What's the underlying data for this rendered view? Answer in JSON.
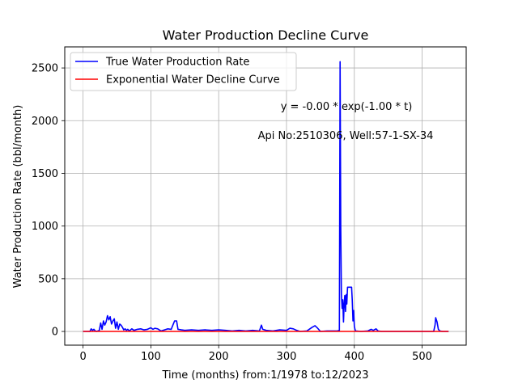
{
  "chart_data": {
    "type": "line",
    "title": "Water Production Decline Curve",
    "xlabel": "Time (months) from:1/1978 to:12/2023",
    "ylabel": "Water Production Rate (bbl/month)",
    "xlim": [
      -27,
      565
    ],
    "ylim": [
      -130,
      2700
    ],
    "xticks": [
      0,
      100,
      200,
      300,
      400,
      500
    ],
    "yticks": [
      0,
      500,
      1000,
      1500,
      2000,
      2500
    ],
    "xtick_labels": [
      "0",
      "100",
      "200",
      "300",
      "400",
      "500"
    ],
    "ytick_labels": [
      "0",
      "500",
      "1000",
      "1500",
      "2000",
      "2500"
    ],
    "grid": true,
    "legend_position": "top-left",
    "annotations": [
      "y = -0.00 * exp(-1.00 * t)",
      "Api No:2510306, Well:57-1-SX-34"
    ],
    "series": [
      {
        "name": "True Water Production Rate",
        "color": "#0000ff",
        "points": [
          [
            0,
            0
          ],
          [
            10,
            0
          ],
          [
            12,
            25
          ],
          [
            14,
            10
          ],
          [
            16,
            20
          ],
          [
            18,
            5
          ],
          [
            20,
            0
          ],
          [
            24,
            10
          ],
          [
            26,
            80
          ],
          [
            28,
            20
          ],
          [
            30,
            100
          ],
          [
            32,
            60
          ],
          [
            34,
            90
          ],
          [
            36,
            150
          ],
          [
            38,
            110
          ],
          [
            40,
            140
          ],
          [
            42,
            70
          ],
          [
            44,
            100
          ],
          [
            46,
            120
          ],
          [
            48,
            30
          ],
          [
            50,
            90
          ],
          [
            52,
            20
          ],
          [
            54,
            70
          ],
          [
            56,
            60
          ],
          [
            58,
            40
          ],
          [
            60,
            15
          ],
          [
            62,
            25
          ],
          [
            64,
            10
          ],
          [
            66,
            20
          ],
          [
            68,
            5
          ],
          [
            70,
            15
          ],
          [
            72,
            25
          ],
          [
            75,
            10
          ],
          [
            80,
            20
          ],
          [
            85,
            25
          ],
          [
            90,
            15
          ],
          [
            95,
            20
          ],
          [
            100,
            35
          ],
          [
            103,
            20
          ],
          [
            106,
            30
          ],
          [
            110,
            25
          ],
          [
            115,
            5
          ],
          [
            120,
            15
          ],
          [
            125,
            25
          ],
          [
            130,
            20
          ],
          [
            135,
            100
          ],
          [
            138,
            100
          ],
          [
            140,
            20
          ],
          [
            145,
            15
          ],
          [
            150,
            10
          ],
          [
            160,
            15
          ],
          [
            170,
            10
          ],
          [
            180,
            15
          ],
          [
            190,
            10
          ],
          [
            200,
            15
          ],
          [
            210,
            10
          ],
          [
            220,
            5
          ],
          [
            230,
            10
          ],
          [
            240,
            5
          ],
          [
            250,
            10
          ],
          [
            260,
            5
          ],
          [
            263,
            60
          ],
          [
            265,
            20
          ],
          [
            270,
            10
          ],
          [
            280,
            5
          ],
          [
            290,
            15
          ],
          [
            300,
            10
          ],
          [
            305,
            30
          ],
          [
            310,
            25
          ],
          [
            315,
            10
          ],
          [
            320,
            0
          ],
          [
            330,
            5
          ],
          [
            338,
            40
          ],
          [
            342,
            55
          ],
          [
            346,
            30
          ],
          [
            350,
            0
          ],
          [
            360,
            5
          ],
          [
            375,
            5
          ],
          [
            378,
            10
          ],
          [
            379,
            2560
          ],
          [
            380,
            1000
          ],
          [
            381,
            350
          ],
          [
            382,
            220
          ],
          [
            383,
            300
          ],
          [
            384,
            90
          ],
          [
            385,
            260
          ],
          [
            386,
            340
          ],
          [
            387,
            190
          ],
          [
            388,
            350
          ],
          [
            389,
            260
          ],
          [
            390,
            420
          ],
          [
            396,
            420
          ],
          [
            397,
            300
          ],
          [
            398,
            100
          ],
          [
            399,
            200
          ],
          [
            400,
            50
          ],
          [
            401,
            20
          ],
          [
            402,
            5
          ],
          [
            410,
            0
          ],
          [
            420,
            5
          ],
          [
            425,
            20
          ],
          [
            428,
            10
          ],
          [
            432,
            25
          ],
          [
            435,
            5
          ],
          [
            440,
            0
          ],
          [
            480,
            0
          ],
          [
            517,
            0
          ],
          [
            519,
            60
          ],
          [
            520,
            130
          ],
          [
            522,
            90
          ],
          [
            524,
            20
          ],
          [
            526,
            5
          ],
          [
            530,
            0
          ],
          [
            539,
            0
          ]
        ]
      },
      {
        "name": "Exponential Water Decline Curve",
        "color": "#ff0000",
        "points": [
          [
            0,
            0
          ],
          [
            539,
            0
          ]
        ]
      }
    ]
  }
}
